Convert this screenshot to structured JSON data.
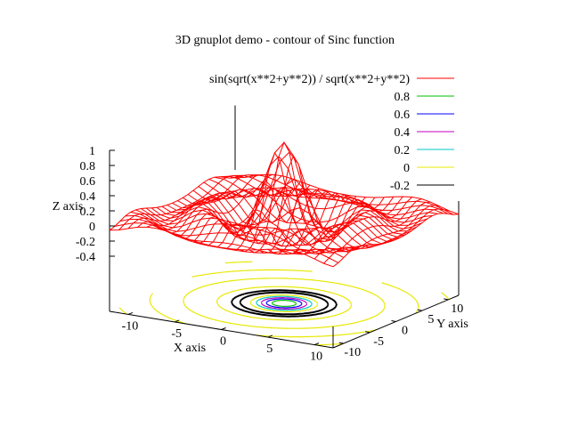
{
  "chart_data": {
    "type": "surface",
    "title": "3D gnuplot demo - contour of Sinc function",
    "function": "sin(sqrt(x**2+y**2)) / sqrt(x**2+y**2)",
    "xlabel": "X axis",
    "ylabel": "Y axis",
    "zlabel": "Z axis",
    "xlim": [
      -12,
      12
    ],
    "ylim": [
      -12,
      12
    ],
    "zlim": [
      -0.4,
      1
    ],
    "xticks": [
      "-10",
      "-5",
      "0",
      "5",
      "10"
    ],
    "yticks": [
      "-10",
      "-5",
      "0",
      "5",
      "10"
    ],
    "zticks": [
      "1",
      "0.8",
      "0.6",
      "0.4",
      "0.2",
      "0",
      "-0.2",
      "-0.4"
    ],
    "grid_samples": 25,
    "legend_position": "top-right",
    "series": [
      {
        "name": "sin(sqrt(x**2+y**2)) / sqrt(x**2+y**2)",
        "kind": "surface",
        "color": "#ff0000"
      },
      {
        "name": "0.8",
        "kind": "contour",
        "level": 0.8,
        "color": "#00c000"
      },
      {
        "name": "0.6",
        "kind": "contour",
        "level": 0.6,
        "color": "#0000ff"
      },
      {
        "name": "0.4",
        "kind": "contour",
        "level": 0.4,
        "color": "#c000c0"
      },
      {
        "name": "0.2",
        "kind": "contour",
        "level": 0.2,
        "color": "#00c8c8"
      },
      {
        "name": "0",
        "kind": "contour",
        "level": 0,
        "color": "#e8e800"
      },
      {
        "name": "-0.2",
        "kind": "contour",
        "level": -0.2,
        "color": "#000000"
      }
    ]
  }
}
